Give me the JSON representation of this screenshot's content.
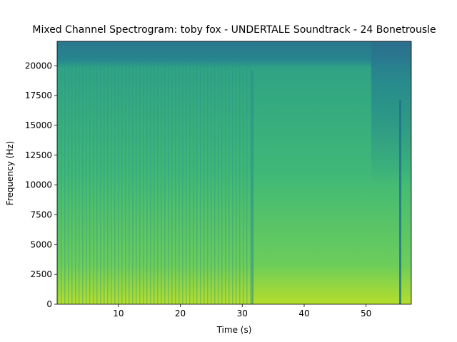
{
  "chart_data": {
    "type": "spectrogram",
    "title": "Mixed Channel Spectrogram: toby fox - UNDERTALE Soundtrack - 24 Bonetrousle",
    "xlabel": "Time (s)",
    "ylabel": "Frequency (Hz)",
    "xlim": [
      0.1,
      57.3
    ],
    "ylim": [
      0,
      22050
    ],
    "xticks": [
      10,
      20,
      30,
      40,
      50
    ],
    "yticks": [
      0,
      2500,
      5000,
      7500,
      10000,
      12500,
      15000,
      17500,
      20000
    ]
  }
}
